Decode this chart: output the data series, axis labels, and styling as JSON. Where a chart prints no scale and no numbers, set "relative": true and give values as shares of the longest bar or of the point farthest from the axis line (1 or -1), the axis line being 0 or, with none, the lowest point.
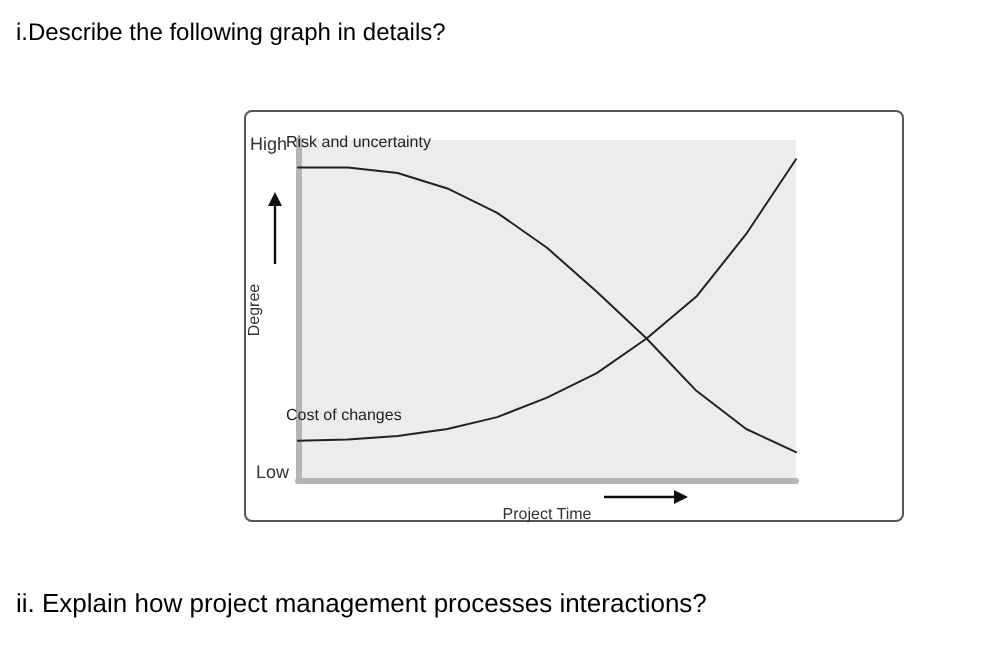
{
  "chart_data": {
    "type": "line",
    "title": "i.Describe the following graph in details?",
    "xlabel": "Project Time",
    "ylabel": "Degree",
    "annotations": [
      "High",
      "Low",
      "ii. Explain how project management processes interactions?"
    ],
    "categories": [
      null,
      null,
      null,
      null,
      null,
      null,
      null,
      null,
      null,
      null,
      null
    ],
    "series": [
      {
        "name": "Risk and uncertainty",
        "color": "#222222",
        "values": [
          0.974,
          0.974,
          0.957,
          0.909,
          0.833,
          0.724,
          0.587,
          0.441,
          0.278,
          0.159,
          0.087
        ]
      },
      {
        "name": "Cost of changes",
        "color": "#222222",
        "values": [
          0.122,
          0.126,
          0.137,
          0.159,
          0.196,
          0.257,
          0.333,
          0.441,
          0.572,
          0.767,
          1
        ]
      }
    ],
    "relative": true,
    "legend": false,
    "grid": false,
    "marker": "none",
    "line_style": "solid"
  }
}
